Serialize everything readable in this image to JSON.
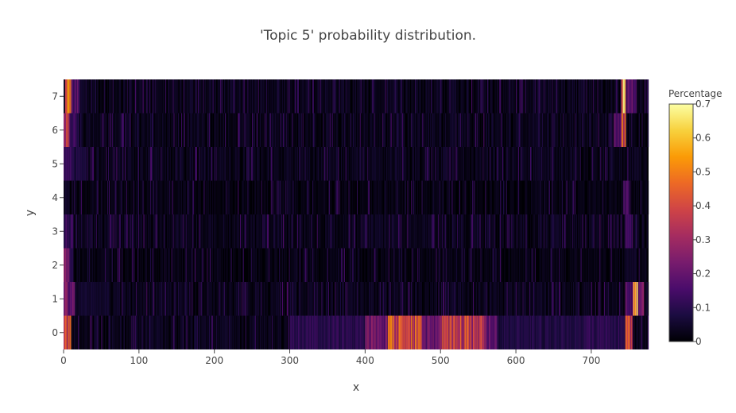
{
  "chart_data": {
    "type": "heatmap",
    "title": "'Topic 5' probability distribution.",
    "xlabel": "x",
    "ylabel": "y",
    "xlim": [
      0,
      776
    ],
    "ylim": [
      -0.5,
      7.5
    ],
    "x_ticks": [
      "0",
      "100",
      "200",
      "300",
      "400",
      "500",
      "600",
      "700"
    ],
    "y_ticks": [
      "0",
      "1",
      "2",
      "3",
      "4",
      "5",
      "6",
      "7"
    ],
    "colorbar": {
      "title": "Percentage",
      "range": [
        0,
        0.7
      ],
      "ticks": [
        "0",
        "0.1",
        "0.2",
        "0.3",
        "0.4",
        "0.5",
        "0.6",
        "0.7"
      ],
      "colorscale": [
        "#000004",
        "#1b0c41",
        "#4a0c6b",
        "#781c6d",
        "#a52c60",
        "#cf4446",
        "#ed6925",
        "#fb9b06",
        "#f7d13d",
        "#fcffa4"
      ]
    },
    "rows": [
      {
        "y": 0,
        "base": 0.03,
        "hot": [
          {
            "x0": 0,
            "x1": 10,
            "v": 0.45
          },
          {
            "x0": 300,
            "x1": 400,
            "v": 0.12
          },
          {
            "x0": 400,
            "x1": 430,
            "v": 0.25
          },
          {
            "x0": 430,
            "x1": 475,
            "v": 0.48
          },
          {
            "x0": 475,
            "x1": 500,
            "v": 0.25
          },
          {
            "x0": 500,
            "x1": 560,
            "v": 0.42
          },
          {
            "x0": 560,
            "x1": 575,
            "v": 0.22
          },
          {
            "x0": 575,
            "x1": 690,
            "v": 0.1
          },
          {
            "x0": 690,
            "x1": 745,
            "v": 0.13
          },
          {
            "x0": 745,
            "x1": 755,
            "v": 0.45
          }
        ]
      },
      {
        "y": 1,
        "base": 0.03,
        "hot": [
          {
            "x0": 0,
            "x1": 15,
            "v": 0.25
          },
          {
            "x0": 15,
            "x1": 60,
            "v": 0.06
          },
          {
            "x0": 745,
            "x1": 755,
            "v": 0.2
          },
          {
            "x0": 755,
            "x1": 762,
            "v": 0.65
          },
          {
            "x0": 762,
            "x1": 770,
            "v": 0.25
          }
        ]
      },
      {
        "y": 2,
        "base": 0.02,
        "hot": [
          {
            "x0": 0,
            "x1": 8,
            "v": 0.3
          },
          {
            "x0": 8,
            "x1": 12,
            "v": 0.12
          },
          {
            "x0": 745,
            "x1": 760,
            "v": 0.05
          }
        ]
      },
      {
        "y": 3,
        "base": 0.03,
        "hot": [
          {
            "x0": 0,
            "x1": 12,
            "v": 0.15
          },
          {
            "x0": 745,
            "x1": 755,
            "v": 0.18
          }
        ]
      },
      {
        "y": 4,
        "base": 0.02,
        "hot": [
          {
            "x0": 0,
            "x1": 8,
            "v": 0.05
          },
          {
            "x0": 742,
            "x1": 750,
            "v": 0.18
          }
        ]
      },
      {
        "y": 5,
        "base": 0.03,
        "hot": [
          {
            "x0": 0,
            "x1": 10,
            "v": 0.15
          },
          {
            "x0": 10,
            "x1": 30,
            "v": 0.1
          }
        ]
      },
      {
        "y": 6,
        "base": 0.03,
        "hot": [
          {
            "x0": 0,
            "x1": 8,
            "v": 0.4
          },
          {
            "x0": 8,
            "x1": 20,
            "v": 0.15
          },
          {
            "x0": 730,
            "x1": 740,
            "v": 0.2
          },
          {
            "x0": 740,
            "x1": 746,
            "v": 0.5
          }
        ]
      },
      {
        "y": 7,
        "base": 0.03,
        "hot": [
          {
            "x0": 2,
            "x1": 10,
            "v": 0.55
          },
          {
            "x0": 10,
            "x1": 20,
            "v": 0.2
          },
          {
            "x0": 740,
            "x1": 746,
            "v": 0.62
          },
          {
            "x0": 746,
            "x1": 760,
            "v": 0.2
          }
        ]
      }
    ]
  }
}
